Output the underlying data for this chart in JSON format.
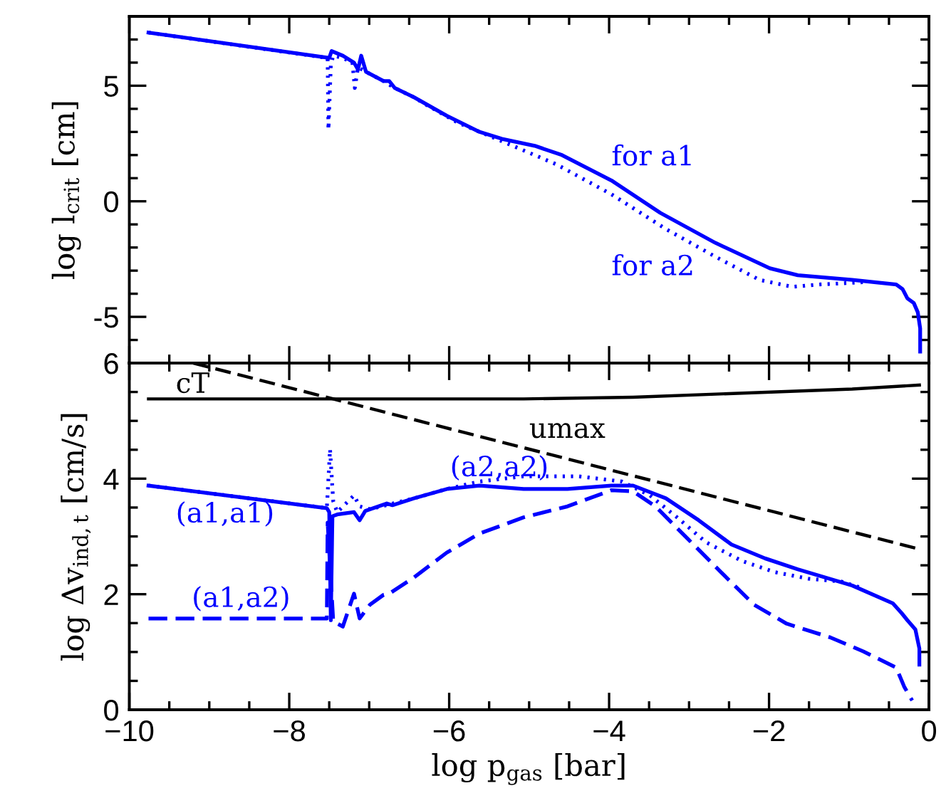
{
  "chart_data": [
    {
      "type": "line",
      "ylabel": "log l$_{crit}$ [cm]",
      "xlim": [
        -10,
        0
      ],
      "ylim": [
        -7,
        8
      ],
      "tick_labels": "y",
      "xticks": [
        -10,
        {
          "value": -9.5,
          "label": null
        },
        {
          "value": -9,
          "label": null
        },
        {
          "value": -8.5,
          "label": null
        },
        -8,
        {
          "value": -7.5,
          "label": null
        },
        {
          "value": -7,
          "label": null
        },
        {
          "value": -6.5,
          "label": null
        },
        -6,
        {
          "value": -5.5,
          "label": null
        },
        {
          "value": -5,
          "label": null
        },
        {
          "value": -4.5,
          "label": null
        },
        -4,
        {
          "value": -3.5,
          "label": null
        },
        {
          "value": -3,
          "label": null
        },
        {
          "value": -2.5,
          "label": null
        },
        -2,
        {
          "value": -1.5,
          "label": null
        },
        {
          "value": -1,
          "label": null
        },
        {
          "value": -0.5,
          "label": null
        },
        0
      ],
      "yticks": [
        -5,
        0,
        5,
        {
          "value": -6,
          "label": null
        },
        {
          "value": -4,
          "label": null
        },
        {
          "value": -3,
          "label": null
        },
        {
          "value": -2,
          "label": null
        },
        {
          "value": -1,
          "label": null
        },
        {
          "value": 1,
          "label": null
        },
        {
          "value": 2,
          "label": null
        },
        {
          "value": 3,
          "label": null
        },
        {
          "value": 4,
          "label": null
        },
        {
          "value": 6,
          "label": null
        },
        {
          "value": 7,
          "label": null
        }
      ],
      "series": [
        {
          "name": "for a1",
          "color": "#0000ff",
          "line_style": "solid",
          "x": [
            -9.76,
            -7.5,
            -7.47,
            -7.33,
            -7.19,
            -7.14,
            -7.1,
            -7.04,
            -6.82,
            -6.75,
            -6.68,
            -6.44,
            -6.03,
            -5.62,
            -5.34,
            -4.93,
            -4.59,
            -3.97,
            -3.36,
            -2.67,
            -1.99,
            -1.64,
            -0.96,
            -0.41,
            -0.33,
            -0.27,
            -0.19,
            -0.14,
            -0.11,
            -0.11
          ],
          "values": [
            7.3,
            6.2,
            6.5,
            6.3,
            6.0,
            5.7,
            6.3,
            5.6,
            5.2,
            5.2,
            4.9,
            4.5,
            3.7,
            3.0,
            2.7,
            2.4,
            2.0,
            0.9,
            -0.5,
            -1.8,
            -2.9,
            -3.2,
            -3.4,
            -3.6,
            -3.8,
            -4.2,
            -4.4,
            -4.8,
            -5.5,
            -6.5
          ]
        },
        {
          "name": "for a2",
          "color": "#0000ff",
          "line_style": "dotted",
          "x": [
            -9.76,
            -7.52,
            -7.51,
            -7.48,
            -7.45,
            -7.33,
            -7.21,
            -7.18,
            -7.14,
            -7.04,
            -6.82,
            -6.68,
            -6.44,
            -6.3,
            -5.89,
            -5.34,
            -4.66,
            -3.97,
            -3.29,
            -2.67,
            -2.12,
            -1.71,
            -1.37,
            -0.82
          ],
          "values": [
            7.3,
            6.2,
            3.1,
            5.9,
            6.3,
            6.2,
            6.0,
            4.9,
            5.8,
            5.6,
            5.2,
            4.9,
            4.5,
            4.2,
            3.4,
            2.6,
            1.6,
            0.3,
            -1.2,
            -2.4,
            -3.4,
            -3.7,
            -3.6,
            -3.5
          ]
        }
      ]
    },
    {
      "type": "line",
      "xlabel": "log p$_{gas}$ [bar]",
      "ylabel": "log Δv$_{ind,t}$ [cm/s]",
      "xlim": [
        -10,
        0
      ],
      "ylim": [
        0,
        6
      ],
      "xticks": [
        {
          "value": -10,
          "label": "−10"
        },
        {
          "value": -9.5,
          "label": null
        },
        {
          "value": -9,
          "label": null
        },
        {
          "value": -8.5,
          "label": null
        },
        {
          "value": -8,
          "label": "−8"
        },
        {
          "value": -7.5,
          "label": null
        },
        {
          "value": -7,
          "label": null
        },
        {
          "value": -6.5,
          "label": null
        },
        {
          "value": -6,
          "label": "−6"
        },
        {
          "value": -5.5,
          "label": null
        },
        {
          "value": -5,
          "label": null
        },
        {
          "value": -4.5,
          "label": null
        },
        {
          "value": -4,
          "label": "−4"
        },
        {
          "value": -3.5,
          "label": null
        },
        {
          "value": -3,
          "label": null
        },
        {
          "value": -2.5,
          "label": null
        },
        {
          "value": -2,
          "label": "−2"
        },
        {
          "value": -1.5,
          "label": null
        },
        {
          "value": -1,
          "label": null
        },
        {
          "value": -0.5,
          "label": null
        },
        0
      ],
      "yticks": [
        0,
        2,
        4,
        6,
        {
          "value": 0.5,
          "label": null
        },
        {
          "value": 1,
          "label": null
        },
        {
          "value": 1.5,
          "label": null
        },
        {
          "value": 2.5,
          "label": null
        },
        {
          "value": 3,
          "label": null
        },
        {
          "value": 3.5,
          "label": null
        },
        {
          "value": 4.5,
          "label": null
        },
        {
          "value": 5,
          "label": null
        },
        {
          "value": 5.5,
          "label": null
        }
      ],
      "series": [
        {
          "name": "cT",
          "color": "#000000",
          "line_style": "solid",
          "x": [
            -9.76,
            -5.07,
            -3.7,
            -2.33,
            -0.96,
            -0.12
          ],
          "values": [
            5.38,
            5.38,
            5.41,
            5.48,
            5.55,
            5.62
          ]
        },
        {
          "name": "umax",
          "color": "#000000",
          "line_style": "dashed",
          "x": [
            -9.2,
            -0.12
          ],
          "values": [
            6.0,
            2.78
          ]
        },
        {
          "name": "(a1,a1)",
          "color": "#0000ff",
          "line_style": "solid",
          "x": [
            -9.76,
            -7.53,
            -7.5,
            -7.48,
            -7.46,
            -7.4,
            -7.19,
            -7.12,
            -7.05,
            -6.78,
            -6.71,
            -6.44,
            -6.03,
            -5.62,
            -5.07,
            -4.52,
            -3.97,
            -3.7,
            -3.29,
            -2.88,
            -2.47,
            -2.05,
            -1.64,
            -0.96,
            -0.45,
            -0.34,
            -0.27,
            -0.17,
            -0.12,
            -0.12
          ],
          "values": [
            3.88,
            3.49,
            3.42,
            1.55,
            3.35,
            3.38,
            3.42,
            3.28,
            3.44,
            3.57,
            3.54,
            3.66,
            3.82,
            3.88,
            3.82,
            3.82,
            3.88,
            3.88,
            3.66,
            3.28,
            2.86,
            2.62,
            2.43,
            2.15,
            1.84,
            1.67,
            1.55,
            1.39,
            1.06,
            0.78
          ]
        },
        {
          "name": "(a2,a2)",
          "color": "#0000ff",
          "line_style": "dotted",
          "x": [
            -9.76,
            -7.53,
            -7.49,
            -7.45,
            -7.4,
            -7.19,
            -7.12,
            -6.99,
            -6.44,
            -6.03,
            -5.62,
            -5.07,
            -4.38,
            -3.84,
            -3.49,
            -3.15,
            -2.79,
            -2.33,
            -1.92,
            -1.51,
            -1.1,
            -0.82
          ],
          "values": [
            3.88,
            3.49,
            4.51,
            3.61,
            3.42,
            3.71,
            3.52,
            3.47,
            3.66,
            3.82,
            3.95,
            4.04,
            4.04,
            3.95,
            3.71,
            3.33,
            2.9,
            2.57,
            2.38,
            2.27,
            2.22,
            2.1
          ]
        },
        {
          "name": "(a1,a2)",
          "color": "#0000ff",
          "line_style": "dashed",
          "x": [
            -9.76,
            -7.53,
            -7.52,
            -7.45,
            -7.33,
            -7.19,
            -7.12,
            -6.99,
            -6.82,
            -6.75,
            -6.44,
            -6.03,
            -5.62,
            -5.07,
            -4.52,
            -3.97,
            -3.7,
            -3.42,
            -3.01,
            -2.6,
            -2.19,
            -1.78,
            -1.23,
            -0.82,
            -0.41,
            -0.31,
            -0.21
          ],
          "values": [
            1.58,
            1.58,
            3.24,
            1.53,
            1.44,
            2.01,
            1.58,
            1.82,
            1.99,
            2.01,
            2.29,
            2.72,
            3.05,
            3.33,
            3.52,
            3.8,
            3.78,
            3.52,
            2.95,
            2.38,
            1.82,
            1.49,
            1.25,
            1.01,
            0.73,
            0.4,
            0.16
          ]
        }
      ]
    }
  ]
}
